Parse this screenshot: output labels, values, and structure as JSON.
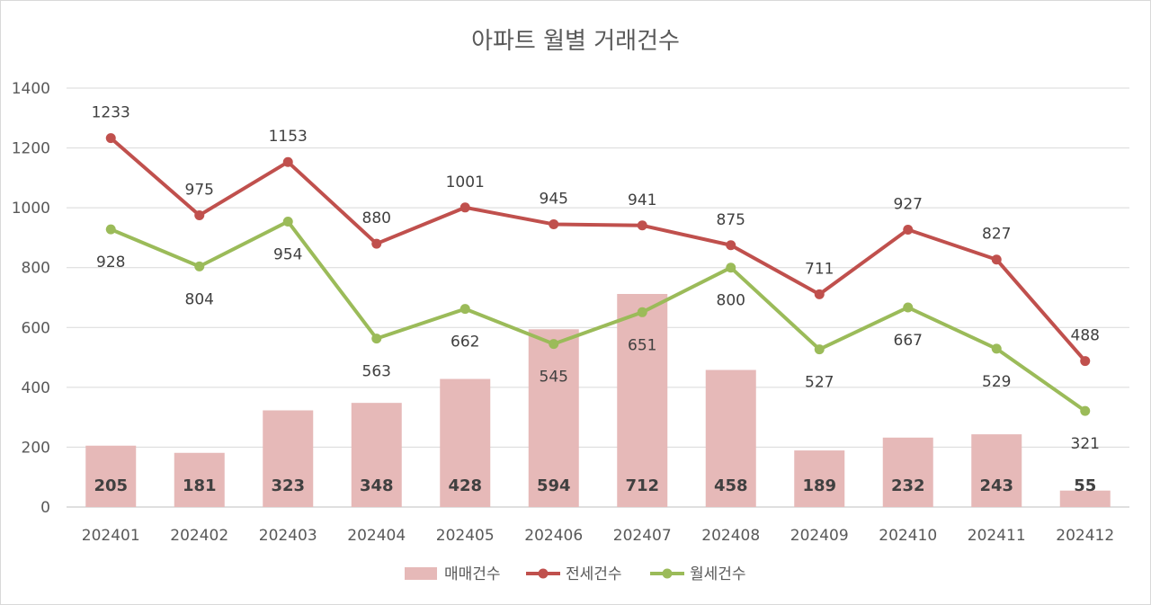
{
  "chart_data": {
    "type": "bar+line",
    "title": "아파트 월별 거래건수",
    "categories": [
      "202401",
      "202402",
      "202403",
      "202404",
      "202405",
      "202406",
      "202407",
      "202408",
      "202409",
      "202410",
      "202411",
      "202412"
    ],
    "ylim": [
      0,
      1400
    ],
    "yticks": [
      0,
      200,
      400,
      600,
      800,
      1000,
      1200,
      1400
    ],
    "grid": true,
    "legend_position": "bottom",
    "series": [
      {
        "name": "매매건수",
        "type": "bar",
        "color": "#e6b9b8",
        "values": [
          205,
          181,
          323,
          348,
          428,
          594,
          712,
          458,
          189,
          232,
          243,
          55
        ]
      },
      {
        "name": "전세건수",
        "type": "line",
        "color": "#c0504d",
        "values": [
          1233,
          975,
          1153,
          880,
          1001,
          945,
          941,
          875,
          711,
          927,
          827,
          488
        ]
      },
      {
        "name": "월세건수",
        "type": "line",
        "color": "#9bbb59",
        "values": [
          928,
          804,
          954,
          563,
          662,
          545,
          651,
          800,
          527,
          667,
          529,
          321
        ]
      }
    ]
  }
}
